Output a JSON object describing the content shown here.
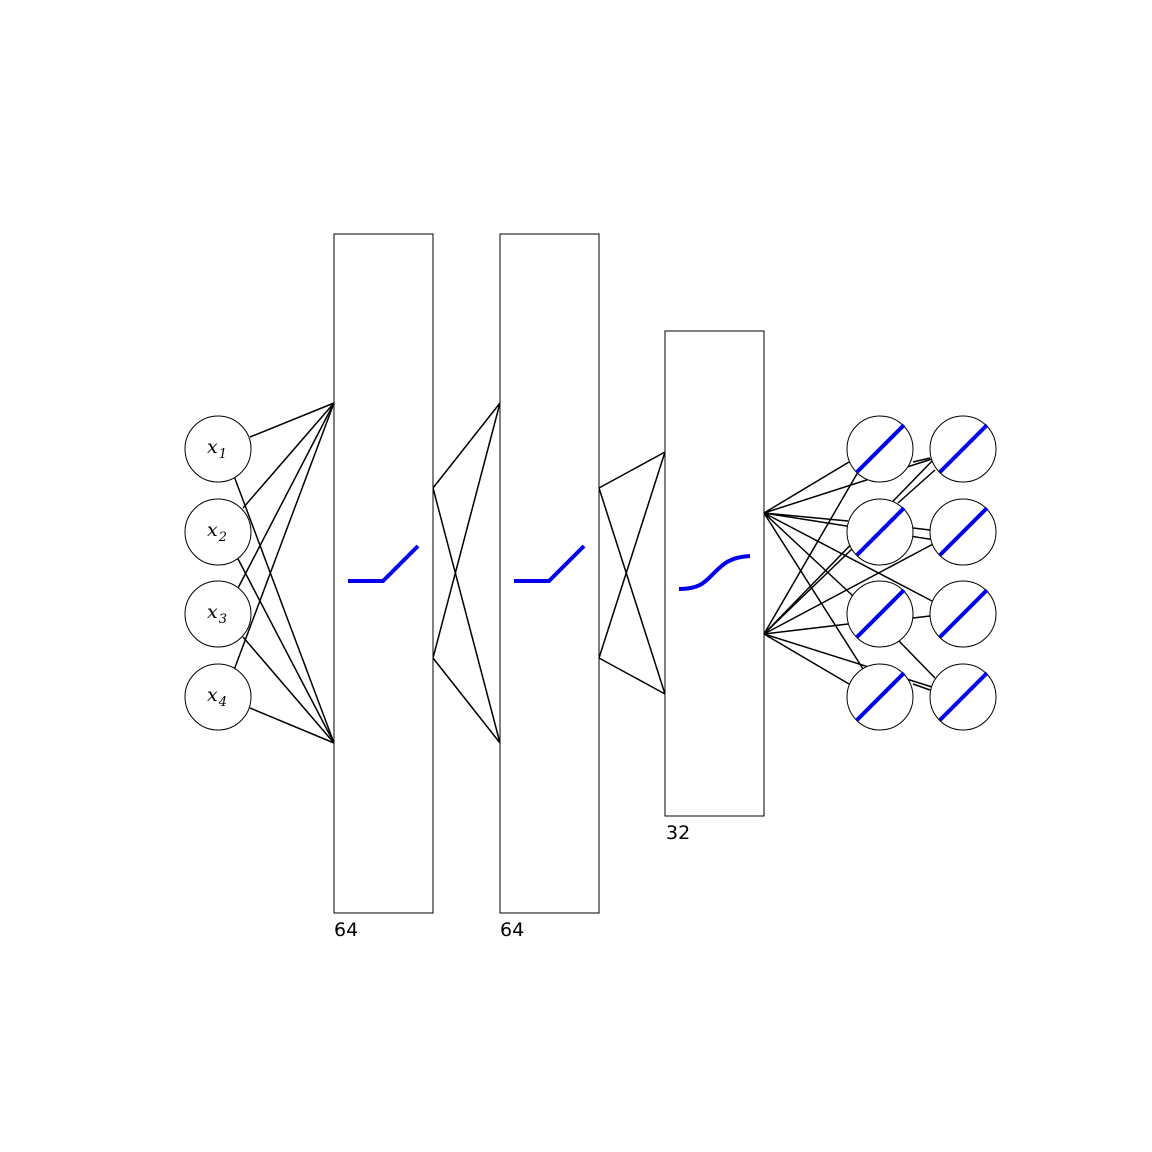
{
  "input_nodes": [
    {
      "var": "x",
      "sub": "1"
    },
    {
      "var": "x",
      "sub": "2"
    },
    {
      "var": "x",
      "sub": "3"
    },
    {
      "var": "x",
      "sub": "4"
    }
  ],
  "layers": [
    {
      "size_label": "64",
      "activation": "relu-icon"
    },
    {
      "size_label": "64",
      "activation": "relu-icon"
    },
    {
      "size_label": "32",
      "activation": "sigmoid-icon"
    }
  ],
  "output_nodes": {
    "count": 8,
    "activation": "linear-icon"
  },
  "colors": {
    "activation": "#0000ee",
    "line": "#000000",
    "fill": "#ffffff"
  }
}
